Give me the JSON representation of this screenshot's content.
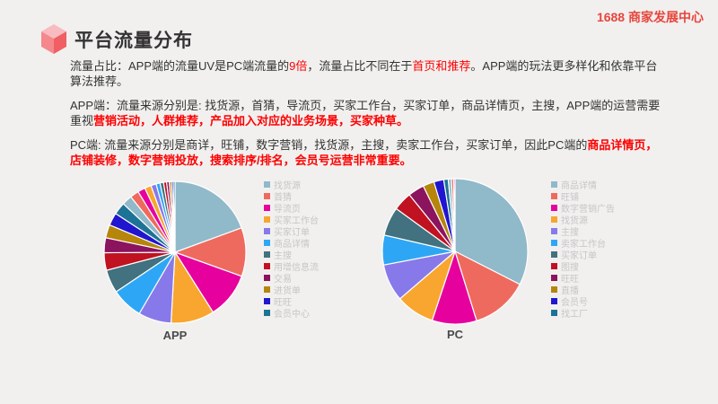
{
  "page": {
    "background": "#f1f0ef"
  },
  "header": {
    "brand": "1688 商家发展中心",
    "brand_color": "#e8453c"
  },
  "title": {
    "text": "平台流量分布",
    "icon": "cube-icon"
  },
  "paragraphs": [
    {
      "name": "p-traffic-ratio",
      "segments": [
        {
          "text": "流量占比：APP端的流量UV是PC端流量的"
        },
        {
          "text": "9倍",
          "color": "red"
        },
        {
          "text": "，流量占比不同在于"
        },
        {
          "text": "首页和推荐",
          "color": "red"
        },
        {
          "text": "。APP端的玩法更多样化和依靠平台算法推荐。"
        }
      ]
    },
    {
      "name": "p-app-sources",
      "segments": [
        {
          "text": "APP端：流量来源分别是: 找货源，首猜，导流页，买家工作台，买家订单，商品详情页，主搜，APP端的运营需要重视"
        },
        {
          "text": "营销活动，人群推荐，产品加入对应的业务场景，买家种草。",
          "color": "red",
          "bold": true
        }
      ]
    },
    {
      "name": "p-pc-sources",
      "segments": [
        {
          "text": "PC端: 流量来源分别是商详，旺铺，数字营销，找货源，主搜，卖家工作台，买家订单，因此PC端的"
        },
        {
          "text": "商品详情页，店铺装修，数字营销投放，搜索排序/排名，会员号运营非常重要。",
          "color": "red",
          "bold": true
        }
      ]
    }
  ],
  "colors": {
    "red_highlight": "#fe0000",
    "body_text": "#333333",
    "legend_text": "#c7c5c5",
    "pie_gap_stroke": "#ffffff",
    "cube_top": "#f8bcc0",
    "cube_left": "#f5888c",
    "cube_right": "#ef5f63",
    "palette": [
      "#90b9ca",
      "#ef6a5e",
      "#e6009e",
      "#f8a62f",
      "#8879ea",
      "#2da7f5",
      "#42717f",
      "#c01220",
      "#8c135e",
      "#b5860b",
      "#2016cf",
      "#1d7396"
    ]
  },
  "chart_data": [
    {
      "type": "pie",
      "name": "APP",
      "legend_position": "right",
      "categories": [
        "找货源",
        "首猜",
        "导流页",
        "买家工作台",
        "买家订单",
        "商品详情",
        "主搜",
        "用增信息流",
        "交易",
        "进货单",
        "旺旺",
        "会员中心"
      ],
      "values": [
        19.4,
        11.1,
        10.5,
        9.9,
        7.5,
        7.2,
        5.3,
        4.0,
        3.4,
        3.0,
        2.9,
        2.8
      ],
      "extra_unlabeled_values": [
        2.3,
        2.0,
        1.7,
        1.5,
        1.2,
        0.9,
        0.8,
        0.7,
        0.6,
        0.5,
        0.4,
        0.4
      ]
    },
    {
      "type": "pie",
      "name": "PC",
      "legend_position": "right",
      "categories": [
        "商品详情",
        "旺铺",
        "数字营销广告",
        "找货源",
        "主搜",
        "卖家工作台",
        "买家订单",
        "图搜",
        "旺旺",
        "直播",
        "会员号",
        "找工厂"
      ],
      "values": [
        32.5,
        12.7,
        9.9,
        8.6,
        8.3,
        6.6,
        6.4,
        4.2,
        3.6,
        2.5,
        2.2,
        1.0
      ],
      "extra_unlabeled_values": [
        0.7,
        0.5,
        0.3
      ]
    }
  ]
}
